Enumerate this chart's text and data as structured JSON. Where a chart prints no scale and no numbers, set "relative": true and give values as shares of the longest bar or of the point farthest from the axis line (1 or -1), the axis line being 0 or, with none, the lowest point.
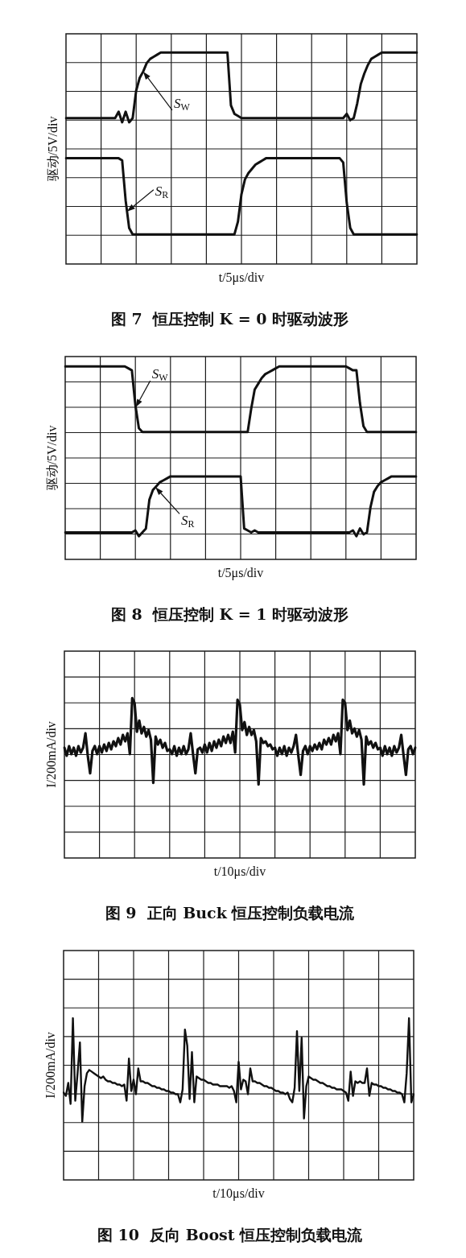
{
  "chart_data": [
    {
      "type": "line",
      "title": "图 7  恒压控制 K = 0 时驱动波形",
      "xlabel": "t/5μs/div",
      "ylabel": "驱动/5V/div",
      "relative": true,
      "grid": true,
      "categories": [
        null,
        null,
        null,
        null,
        null,
        null,
        null,
        null,
        null,
        null,
        null,
        null,
        null,
        null,
        null,
        null,
        null,
        null,
        null,
        null,
        null,
        null,
        null,
        null,
        null,
        null,
        null,
        null,
        null,
        null,
        null,
        null,
        null,
        null,
        null,
        null,
        null,
        null,
        null,
        null,
        null,
        null,
        null,
        null,
        null,
        null,
        null,
        null,
        null,
        null,
        null,
        null,
        null,
        null,
        null,
        null,
        null,
        null,
        null,
        null,
        null,
        null,
        null,
        null,
        null,
        null,
        null,
        null,
        null,
        null,
        null,
        null,
        null,
        null,
        null,
        null,
        null,
        null,
        null,
        null,
        null,
        null,
        null,
        null,
        null,
        null,
        null,
        null,
        null,
        null,
        null,
        null,
        null,
        null,
        null,
        null,
        null,
        null,
        null,
        null,
        null
      ],
      "series": [
        {
          "name": "S$_{W}$",
          "color": "#111111",
          "values": [
            0.69,
            0.69,
            0.69,
            0.69,
            0.69,
            0.69,
            0.69,
            0.69,
            0.69,
            0.69,
            0.69,
            0.69,
            0.69,
            0.69,
            0.69,
            0.72,
            0.67,
            0.72,
            0.67,
            0.69,
            0.82,
            0.88,
            0.91,
            0.95,
            0.97,
            0.98,
            0.99,
            1.0,
            1.0,
            1.0,
            1.0,
            1.0,
            1.0,
            1.0,
            1.0,
            1.0,
            1.0,
            1.0,
            1.0,
            1.0,
            1.0,
            1.0,
            1.0,
            1.0,
            1.0,
            1.0,
            1.0,
            0.75,
            0.71,
            0.7,
            0.69,
            0.69,
            0.69,
            0.69,
            0.69,
            0.69,
            0.69,
            0.69,
            0.69,
            0.69,
            0.69,
            0.69,
            0.69,
            0.69,
            0.69,
            0.69,
            0.69,
            0.69,
            0.69,
            0.69,
            0.69,
            0.69,
            0.69,
            0.69,
            0.69,
            0.69,
            0.69,
            0.69,
            0.69,
            0.69,
            0.71,
            0.68,
            0.69,
            0.76,
            0.85,
            0.9,
            0.94,
            0.97,
            0.98,
            0.99,
            1.0,
            1.0,
            1.0,
            1.0,
            1.0,
            1.0,
            1.0,
            1.0,
            1.0,
            1.0,
            1.0
          ]
        },
        {
          "name": "S$_{R}$",
          "color": "#111111",
          "values": [
            0.5,
            0.5,
            0.5,
            0.5,
            0.5,
            0.5,
            0.5,
            0.5,
            0.5,
            0.5,
            0.5,
            0.5,
            0.5,
            0.5,
            0.5,
            0.5,
            0.49,
            0.3,
            0.17,
            0.14,
            0.14,
            0.14,
            0.14,
            0.14,
            0.14,
            0.14,
            0.14,
            0.14,
            0.14,
            0.14,
            0.14,
            0.14,
            0.14,
            0.14,
            0.14,
            0.14,
            0.14,
            0.14,
            0.14,
            0.14,
            0.14,
            0.14,
            0.14,
            0.14,
            0.14,
            0.14,
            0.14,
            0.14,
            0.14,
            0.2,
            0.33,
            0.4,
            0.43,
            0.45,
            0.47,
            0.48,
            0.49,
            0.5,
            0.5,
            0.5,
            0.5,
            0.5,
            0.5,
            0.5,
            0.5,
            0.5,
            0.5,
            0.5,
            0.5,
            0.5,
            0.5,
            0.5,
            0.5,
            0.5,
            0.5,
            0.5,
            0.5,
            0.5,
            0.5,
            0.48,
            0.29,
            0.17,
            0.14,
            0.14,
            0.14,
            0.14,
            0.14,
            0.14,
            0.14,
            0.14,
            0.14,
            0.14,
            0.14,
            0.14,
            0.14,
            0.14,
            0.14,
            0.14,
            0.14,
            0.14,
            0.14
          ]
        }
      ]
    },
    {
      "type": "line",
      "title": "图 8  恒压控制 K = 1 时驱动波形",
      "xlabel": "t/5μs/div",
      "ylabel": "驱动/5V/div",
      "relative": true,
      "grid": true,
      "categories": [
        null,
        null,
        null,
        null,
        null,
        null,
        null,
        null,
        null,
        null,
        null,
        null,
        null,
        null,
        null,
        null,
        null,
        null,
        null,
        null,
        null,
        null,
        null,
        null,
        null,
        null,
        null,
        null,
        null,
        null,
        null,
        null,
        null,
        null,
        null,
        null,
        null,
        null,
        null,
        null,
        null,
        null,
        null,
        null,
        null,
        null,
        null,
        null,
        null,
        null,
        null,
        null,
        null,
        null,
        null,
        null,
        null,
        null,
        null,
        null,
        null,
        null,
        null,
        null,
        null,
        null,
        null,
        null,
        null,
        null,
        null,
        null,
        null,
        null,
        null,
        null,
        null,
        null,
        null,
        null,
        null,
        null,
        null,
        null,
        null,
        null,
        null,
        null,
        null,
        null,
        null,
        null,
        null,
        null,
        null,
        null,
        null,
        null,
        null,
        null,
        null
      ],
      "series": [
        {
          "name": "S$_{W}$",
          "color": "#111111",
          "values": [
            1.0,
            1.0,
            1.0,
            1.0,
            1.0,
            1.0,
            1.0,
            1.0,
            1.0,
            1.0,
            1.0,
            1.0,
            1.0,
            1.0,
            1.0,
            1.0,
            1.0,
            1.0,
            0.99,
            0.98,
            0.8,
            0.68,
            0.66,
            0.66,
            0.66,
            0.66,
            0.66,
            0.66,
            0.66,
            0.66,
            0.66,
            0.66,
            0.66,
            0.66,
            0.66,
            0.66,
            0.66,
            0.66,
            0.66,
            0.66,
            0.66,
            0.66,
            0.66,
            0.66,
            0.66,
            0.66,
            0.66,
            0.66,
            0.66,
            0.66,
            0.66,
            0.66,
            0.66,
            0.78,
            0.88,
            0.91,
            0.94,
            0.96,
            0.97,
            0.98,
            0.99,
            1.0,
            1.0,
            1.0,
            1.0,
            1.0,
            1.0,
            1.0,
            1.0,
            1.0,
            1.0,
            1.0,
            1.0,
            1.0,
            1.0,
            1.0,
            1.0,
            1.0,
            1.0,
            1.0,
            1.0,
            0.99,
            0.98,
            0.98,
            0.81,
            0.69,
            0.66,
            0.66,
            0.66,
            0.66,
            0.66,
            0.66,
            0.66,
            0.66,
            0.66,
            0.66,
            0.66,
            0.66,
            0.66,
            0.66,
            0.66
          ]
        },
        {
          "name": "S$_{R}$",
          "color": "#111111",
          "values": [
            0.14,
            0.14,
            0.14,
            0.14,
            0.14,
            0.14,
            0.14,
            0.14,
            0.14,
            0.14,
            0.14,
            0.14,
            0.14,
            0.14,
            0.14,
            0.14,
            0.14,
            0.14,
            0.14,
            0.14,
            0.15,
            0.12,
            0.14,
            0.16,
            0.31,
            0.36,
            0.38,
            0.4,
            0.41,
            0.42,
            0.43,
            0.43,
            0.43,
            0.43,
            0.43,
            0.43,
            0.43,
            0.43,
            0.43,
            0.43,
            0.43,
            0.43,
            0.43,
            0.43,
            0.43,
            0.43,
            0.43,
            0.43,
            0.43,
            0.43,
            0.43,
            0.16,
            0.15,
            0.14,
            0.15,
            0.14,
            0.14,
            0.14,
            0.14,
            0.14,
            0.14,
            0.14,
            0.14,
            0.14,
            0.14,
            0.14,
            0.14,
            0.14,
            0.14,
            0.14,
            0.14,
            0.14,
            0.14,
            0.14,
            0.14,
            0.14,
            0.14,
            0.14,
            0.14,
            0.14,
            0.14,
            0.14,
            0.15,
            0.12,
            0.16,
            0.13,
            0.14,
            0.27,
            0.35,
            0.38,
            0.4,
            0.41,
            0.42,
            0.43,
            0.43,
            0.43,
            0.43,
            0.43,
            0.43,
            0.43,
            0.43
          ]
        }
      ]
    },
    {
      "type": "line",
      "title": "图 9  正向 Buck 恒压控制负载电流",
      "xlabel": "t/10μs/div",
      "ylabel": "I/200mA/div",
      "relative": true,
      "grid": true,
      "categories": [
        null,
        null,
        null,
        null,
        null,
        null,
        null,
        null,
        null,
        null,
        null,
        null,
        null,
        null,
        null,
        null,
        null,
        null,
        null,
        null,
        null,
        null,
        null,
        null,
        null,
        null,
        null,
        null,
        null,
        null,
        null,
        null,
        null,
        null,
        null,
        null,
        null,
        null,
        null,
        null,
        null,
        null,
        null,
        null,
        null,
        null,
        null,
        null,
        null,
        null,
        null,
        null,
        null,
        null,
        null,
        null,
        null,
        null,
        null,
        null,
        null,
        null,
        null,
        null,
        null,
        null,
        null,
        null,
        null,
        null,
        null,
        null,
        null,
        null,
        null,
        null,
        null,
        null,
        null,
        null,
        null,
        null,
        null,
        null,
        null,
        null,
        null,
        null,
        null,
        null,
        null,
        null,
        null,
        null,
        null,
        null,
        null,
        null,
        null,
        null,
        null,
        null,
        null,
        null,
        null,
        null,
        null,
        null,
        null,
        null,
        null,
        null,
        null,
        null,
        null,
        null,
        null,
        null,
        null,
        null,
        null,
        null,
        null,
        null,
        null,
        null,
        null,
        null,
        null,
        null,
        null,
        null,
        null,
        null,
        null,
        null,
        null,
        null,
        null,
        null,
        null,
        null,
        null,
        null,
        null,
        null,
        null,
        null,
        null,
        null,
        null
      ],
      "series": [
        {
          "color": "#111111",
          "values": [
            0.69,
            0.64,
            0.7,
            0.65,
            0.69,
            0.64,
            0.7,
            0.66,
            0.69,
            0.78,
            0.64,
            0.53,
            0.67,
            0.7,
            0.65,
            0.7,
            0.66,
            0.71,
            0.67,
            0.72,
            0.68,
            0.73,
            0.7,
            0.75,
            0.71,
            0.77,
            0.73,
            0.78,
            0.65,
            1.0,
            0.97,
            0.79,
            0.86,
            0.78,
            0.82,
            0.76,
            0.8,
            0.74,
            0.47,
            0.76,
            0.71,
            0.74,
            0.69,
            0.72,
            0.67,
            0.68,
            0.65,
            0.7,
            0.64,
            0.69,
            0.65,
            0.7,
            0.65,
            0.68,
            0.78,
            0.65,
            0.53,
            0.68,
            0.69,
            0.66,
            0.71,
            0.66,
            0.72,
            0.67,
            0.73,
            0.69,
            0.74,
            0.7,
            0.76,
            0.72,
            0.77,
            0.72,
            0.79,
            0.66,
            0.99,
            0.96,
            0.8,
            0.85,
            0.77,
            0.82,
            0.77,
            0.8,
            0.73,
            0.46,
            0.75,
            0.72,
            0.73,
            0.7,
            0.71,
            0.68,
            0.69,
            0.64,
            0.69,
            0.65,
            0.7,
            0.64,
            0.69,
            0.66,
            0.7,
            0.77,
            0.64,
            0.52,
            0.67,
            0.7,
            0.65,
            0.7,
            0.67,
            0.71,
            0.68,
            0.72,
            0.68,
            0.74,
            0.71,
            0.75,
            0.71,
            0.77,
            0.73,
            0.78,
            0.65,
            0.99,
            0.97,
            0.8,
            0.86,
            0.78,
            0.81,
            0.76,
            0.8,
            0.74,
            0.46,
            0.76,
            0.71,
            0.73,
            0.69,
            0.72,
            0.68,
            0.69,
            0.64,
            0.7,
            0.65,
            0.69,
            0.64,
            0.7,
            0.66,
            0.69,
            0.77,
            0.64,
            0.52,
            0.68,
            0.7,
            0.65,
            0.69
          ]
        }
      ]
    },
    {
      "type": "line",
      "title": "图 10  反向 Boost 恒压控制负载电流",
      "xlabel": "t/10μs/div",
      "ylabel": "I/200mA/div",
      "relative": true,
      "grid": true,
      "categories": [
        null,
        null,
        null,
        null,
        null,
        null,
        null,
        null,
        null,
        null,
        null,
        null,
        null,
        null,
        null,
        null,
        null,
        null,
        null,
        null,
        null,
        null,
        null,
        null,
        null,
        null,
        null,
        null,
        null,
        null,
        null,
        null,
        null,
        null,
        null,
        null,
        null,
        null,
        null,
        null,
        null,
        null,
        null,
        null,
        null,
        null,
        null,
        null,
        null,
        null,
        null,
        null,
        null,
        null,
        null,
        null,
        null,
        null,
        null,
        null,
        null,
        null,
        null,
        null,
        null,
        null,
        null,
        null,
        null,
        null,
        null,
        null,
        null,
        null,
        null,
        null,
        null,
        null,
        null,
        null,
        null,
        null,
        null,
        null,
        null,
        null,
        null,
        null,
        null,
        null,
        null,
        null,
        null,
        null,
        null,
        null,
        null,
        null,
        null,
        null,
        null,
        null,
        null,
        null,
        null,
        null,
        null,
        null,
        null,
        null,
        null,
        null,
        null,
        null,
        null,
        null,
        null,
        null,
        null,
        null,
        null,
        null,
        null,
        null,
        null,
        null,
        null,
        null,
        null,
        null,
        null,
        null,
        null,
        null,
        null,
        null,
        null,
        null,
        null,
        null,
        null,
        null,
        null,
        null,
        null,
        null,
        null,
        null,
        null,
        null,
        null
      ],
      "series": [
        {
          "color": "#111111",
          "values": [
            0.54,
            0.52,
            0.6,
            0.47,
            1.0,
            0.49,
            0.66,
            0.85,
            0.36,
            0.58,
            0.66,
            0.68,
            0.67,
            0.66,
            0.65,
            0.64,
            0.63,
            0.64,
            0.62,
            0.61,
            0.61,
            0.6,
            0.6,
            0.59,
            0.59,
            0.58,
            0.59,
            0.49,
            0.75,
            0.55,
            0.62,
            0.53,
            0.69,
            0.61,
            0.61,
            0.6,
            0.6,
            0.59,
            0.58,
            0.58,
            0.57,
            0.57,
            0.56,
            0.56,
            0.55,
            0.55,
            0.54,
            0.54,
            0.53,
            0.53,
            0.48,
            0.56,
            0.93,
            0.83,
            0.5,
            0.79,
            0.48,
            0.64,
            0.63,
            0.62,
            0.62,
            0.61,
            0.6,
            0.6,
            0.59,
            0.59,
            0.59,
            0.58,
            0.58,
            0.58,
            0.58,
            0.57,
            0.58,
            0.55,
            0.48,
            0.73,
            0.56,
            0.62,
            0.61,
            0.53,
            0.69,
            0.61,
            0.61,
            0.6,
            0.6,
            0.59,
            0.58,
            0.58,
            0.57,
            0.57,
            0.56,
            0.55,
            0.55,
            0.54,
            0.54,
            0.53,
            0.54,
            0.5,
            0.48,
            0.57,
            0.92,
            0.55,
            0.88,
            0.38,
            0.58,
            0.64,
            0.63,
            0.62,
            0.62,
            0.61,
            0.6,
            0.6,
            0.59,
            0.58,
            0.58,
            0.57,
            0.57,
            0.56,
            0.56,
            0.56,
            0.55,
            0.54,
            0.49,
            0.67,
            0.52,
            0.61,
            0.6,
            0.61,
            0.6,
            0.6,
            0.69,
            0.52,
            0.6,
            0.59,
            0.59,
            0.58,
            0.58,
            0.57,
            0.57,
            0.56,
            0.56,
            0.55,
            0.55,
            0.54,
            0.54,
            0.53,
            0.48,
            0.66,
            1.0,
            0.48,
            0.53
          ]
        }
      ]
    }
  ]
}
